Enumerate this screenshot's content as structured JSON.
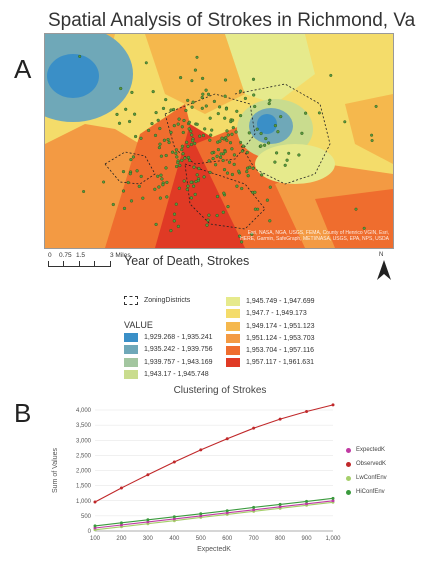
{
  "panel_a": {
    "label": "A",
    "title": "Spatial Analysis of Strokes in Richmond, Va",
    "attribution": "Esri, NASA, NGA, USGS, FEMA, County of Henrico VGIN, Esri, HERE, Garmin, SafeGraph, METI/NASA, USGS, EPA, NPS, USDA",
    "scale_labels": [
      "0",
      "0.75",
      "1.5",
      "3 Miles"
    ],
    "north_label": "N",
    "legend": {
      "title": "Year of Death, Strokes",
      "zoning_label": "ZoningDistricts",
      "value_label": "VALUE",
      "classes": [
        {
          "label": "1,929.268 - 1,935.241",
          "color": "#3a8fc7"
        },
        {
          "label": "1,935.242 - 1,939.756",
          "color": "#6fa8b8"
        },
        {
          "label": "1,939.757 - 1,943.169",
          "color": "#a3c6a0"
        },
        {
          "label": "1,943.17 - 1,945.748",
          "color": "#c9dc8e"
        },
        {
          "label": "1,945.749 - 1,947.699",
          "color": "#e6ea8c"
        },
        {
          "label": "1,947.7 - 1,949.173",
          "color": "#f4dc6a"
        },
        {
          "label": "1,949.174 - 1,951.123",
          "color": "#f5b84d"
        },
        {
          "label": "1,951.124 - 1,953.703",
          "color": "#f39a43"
        },
        {
          "label": "1,953.704 - 1,957.116",
          "color": "#ef6d2e"
        },
        {
          "label": "1,957.117 - 1,961.631",
          "color": "#e03a25"
        }
      ]
    }
  },
  "panel_b": {
    "label": "B",
    "chart_data": {
      "type": "line",
      "title": "Clustering of Strokes",
      "xlabel": "ExpectedK",
      "ylabel": "Sum of Values",
      "x": [
        100,
        200,
        300,
        400,
        500,
        600,
        700,
        800,
        900,
        1000
      ],
      "xlim": [
        100,
        1000
      ],
      "ylim": [
        0,
        4000
      ],
      "y_ticks": [
        0,
        500,
        1000,
        1500,
        2000,
        2500,
        3000,
        3500,
        4000
      ],
      "y_tick_labels": [
        "0",
        "500",
        "1,000",
        "1,500",
        "2,000",
        "2,500",
        "3,000",
        "3,500",
        "4,000"
      ],
      "x_tick_labels": [
        "100",
        "200",
        "300",
        "400",
        "500",
        "600",
        "700",
        "800",
        "900",
        "1,000"
      ],
      "legend_position": "right",
      "series": [
        {
          "name": "ExpectedK",
          "color": "#c03aa3",
          "values": [
            100,
            200,
            300,
            400,
            500,
            600,
            700,
            800,
            900,
            1000
          ]
        },
        {
          "name": "ObservedK",
          "color": "#c0282a",
          "values": [
            960,
            1420,
            1860,
            2280,
            2680,
            3050,
            3400,
            3700,
            3950,
            4170
          ]
        },
        {
          "name": "LwConfEnv",
          "color": "#a6cf6b",
          "values": [
            40,
            140,
            240,
            340,
            450,
            550,
            650,
            750,
            850,
            950
          ]
        },
        {
          "name": "HiConfEnv",
          "color": "#3a9a3d",
          "values": [
            170,
            270,
            370,
            470,
            570,
            670,
            780,
            880,
            980,
            1080
          ]
        }
      ]
    }
  }
}
